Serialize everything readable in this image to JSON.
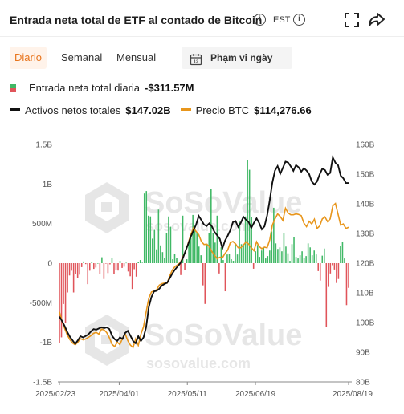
{
  "header": {
    "title": "Entrada neta total de ETF al contado de Bitcoin",
    "timezone": "EST"
  },
  "tabs": [
    {
      "label": "Diario",
      "active": true
    },
    {
      "label": "Semanal",
      "active": false
    },
    {
      "label": "Mensual",
      "active": false
    }
  ],
  "date_range_label": "Phạm vi ngày",
  "legend": {
    "daily_label": "Entrada neta total diaria",
    "daily_value": "-$311.57M",
    "assets_label": "Activos netos totales",
    "assets_value": "$147.02B",
    "price_label": "Precio BTC",
    "price_value": "$114,276.66"
  },
  "watermark": {
    "brand": "SoSoValue",
    "url": "sosovalue.com"
  },
  "colors": {
    "inflow": "#3fb865",
    "outflow": "#e0545a",
    "assets_line": "#111111",
    "price_line": "#e8961c",
    "accent": "#e8741c"
  },
  "chart_data": {
    "type": "bar",
    "x_ticks": [
      "2025/02/23",
      "2025/04/01",
      "2025/05/11",
      "2025/06/19",
      "2025/08/19"
    ],
    "x_tick_positions": [
      0,
      43,
      92,
      141,
      208
    ],
    "left_axis": {
      "ticks": [
        "1.5B",
        "1B",
        "500M",
        "0",
        "-500M",
        "-1B",
        "-1.5B"
      ],
      "range": [
        -1500,
        1500
      ],
      "unit": "M USD"
    },
    "right_axis": {
      "ticks": [
        "160B",
        "150B",
        "140B",
        "130B",
        "120B",
        "110B",
        "100B",
        "90B",
        "80B"
      ],
      "range": [
        80,
        160
      ],
      "unit": "B USD"
    },
    "series": [
      {
        "name": "Entrada neta total diaria",
        "type": "bar",
        "values": [
          -1010,
          -937,
          -516,
          -754,
          -370,
          -155,
          -95,
          -370,
          -140,
          -190,
          -145,
          -50,
          22,
          -12,
          -265,
          -95,
          13,
          -72,
          -55,
          0,
          -140,
          75,
          -200,
          -2,
          -125,
          -15,
          63,
          -140,
          -85,
          -93,
          30,
          -60,
          -45,
          5,
          -105,
          -165,
          -326,
          -76,
          -170,
          15,
          40,
          6,
          880,
          911,
          600,
          591,
          310,
          420,
          175,
          676,
          225,
          140,
          65,
          380,
          590,
          460,
          50,
          116,
          67,
          -25,
          -150,
          600,
          -90,
          50,
          260,
          320,
          609,
          430,
          380,
          210,
          100,
          -280,
          -515,
          245,
          385,
          935,
          385,
          260,
          600,
          -130,
          200,
          40,
          -355,
          110,
          115,
          50,
          30,
          240,
          110,
          525,
          240,
          220,
          590,
          1300,
          1180,
          580,
          -70,
          150,
          230,
          80,
          160,
          200,
          60,
          90,
          160,
          400,
          700,
          250,
          180,
          200,
          150,
          380,
          210,
          125,
          30,
          240,
          330,
          80,
          60,
          100,
          150,
          70,
          90,
          250,
          200,
          100,
          160,
          110,
          -100,
          -220,
          95,
          185,
          -810,
          -300,
          -130,
          -25,
          -80,
          -250,
          -200,
          220,
          270,
          60,
          -530,
          -311.57
        ]
      },
      {
        "name": "Activos netos totales",
        "type": "line",
        "axis": "right",
        "values": [
          102,
          100.5,
          98.8,
          96.8,
          95.2,
          94,
          92.8,
          94,
          95.4,
          95,
          95.5,
          96,
          97,
          97.8,
          97.6,
          98,
          98.4,
          98.1,
          98.4,
          97.8,
          95.6,
          94.4,
          93.8,
          95,
          94.5,
          96.5,
          97.2,
          95.6,
          93.8,
          93,
          95.4,
          93.8,
          95,
          98.5,
          105.2,
          108.6,
          110.5,
          110.7,
          111.4,
          112.5,
          113,
          113.4,
          115,
          116.6,
          117.9,
          119,
          120,
          121.8,
          124.2,
          126.5,
          129,
          131,
          133,
          135.9,
          134.5,
          133,
          132.5,
          133.4,
          132.4,
          130.5,
          129.4,
          128.2,
          125,
          127.6,
          129.2,
          131.1,
          133.8,
          134.2,
          132.2,
          133.6,
          135.6,
          134.6,
          133.8,
          131.9,
          133.6,
          135.1,
          133.5,
          131.4,
          132.4,
          136,
          141.1,
          147.1,
          151.2,
          152.7,
          150.1,
          152.1,
          154.2,
          153.9,
          152.6,
          151.1,
          153,
          152.3,
          150.8,
          152,
          151.2,
          150,
          147.5,
          146.5,
          147.5,
          149.9,
          151.8,
          151.4,
          149.8,
          150.4,
          155.6,
          153.8,
          153,
          149.5,
          148.6,
          147,
          147.02
        ]
      },
      {
        "name": "Precio BTC",
        "type": "line",
        "axis": "right",
        "values": [
          103.6,
          100.4,
          98,
          95.8,
          94.2,
          93.1,
          92.5,
          93.4,
          94.6,
          94.2,
          94.5,
          95,
          95.6,
          96.4,
          96.7,
          96.1,
          97.8,
          97.5,
          96.6,
          94.9,
          92.7,
          91.9,
          93.4,
          92.6,
          94.7,
          96.2,
          93.9,
          92.4,
          91.6,
          94.5,
          92.3,
          96.1,
          98.6,
          103.6,
          108.2,
          110.3,
          110.6,
          111.1,
          112.6,
          113.1,
          113.3,
          113.3,
          115.8,
          117.8,
          118.9,
          119.5,
          120.2,
          122.2,
          124,
          126.8,
          129.7,
          131.9,
          130.7,
          129.6,
          127.3,
          126.3,
          126.4,
          125.6,
          123.9,
          122.7,
          121.5,
          122,
          121.8,
          123.3,
          124.4,
          126.9,
          127.3,
          126.5,
          125.2,
          125.2,
          126.1,
          127.2,
          126.4,
          125.2,
          124.2,
          127.2,
          125.6,
          124.9,
          125.4,
          125.2,
          127.8,
          132.8,
          134.9,
          136.6,
          135.7,
          134.4,
          138.5,
          136.9,
          136.3,
          136.3,
          136.6,
          136.4,
          136,
          133.5,
          132.3,
          134.1,
          133.2,
          134.8,
          131.7,
          132.5,
          134.9,
          135.6,
          134,
          134.9,
          139.3,
          140.1,
          136.5,
          132.8,
          133.2,
          131.7,
          132.1
        ]
      }
    ],
    "grid": false,
    "legend_position": "top-left"
  }
}
